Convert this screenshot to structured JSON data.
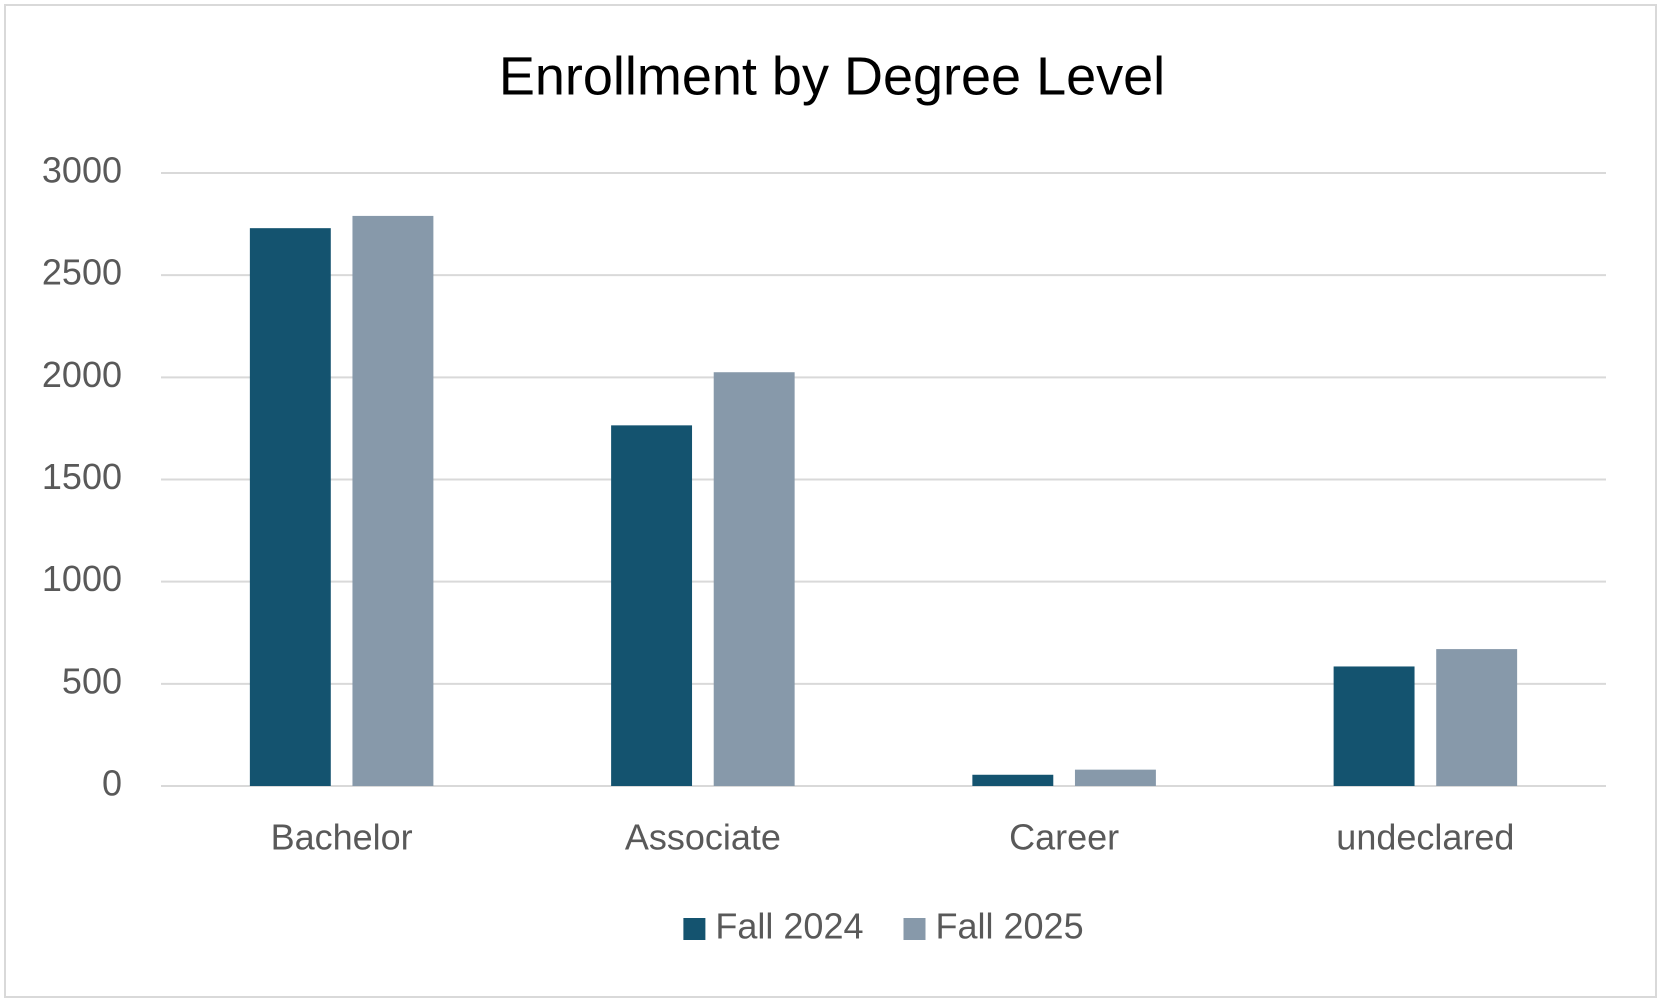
{
  "chart_data": {
    "type": "bar",
    "title": "Enrollment by Degree Level",
    "categories": [
      "Bachelor",
      "Associate",
      "Career",
      "undeclared"
    ],
    "series": [
      {
        "name": "Fall 2024",
        "color": "#14536f",
        "values": [
          2730,
          1765,
          55,
          585
        ]
      },
      {
        "name": "Fall 2025",
        "color": "#8799aa",
        "values": [
          2790,
          2025,
          80,
          670
        ]
      }
    ],
    "ylim": [
      0,
      3000
    ],
    "yticks": [
      0,
      500,
      1000,
      1500,
      2000,
      2500,
      3000
    ],
    "grid": true,
    "legend": "bottom"
  }
}
